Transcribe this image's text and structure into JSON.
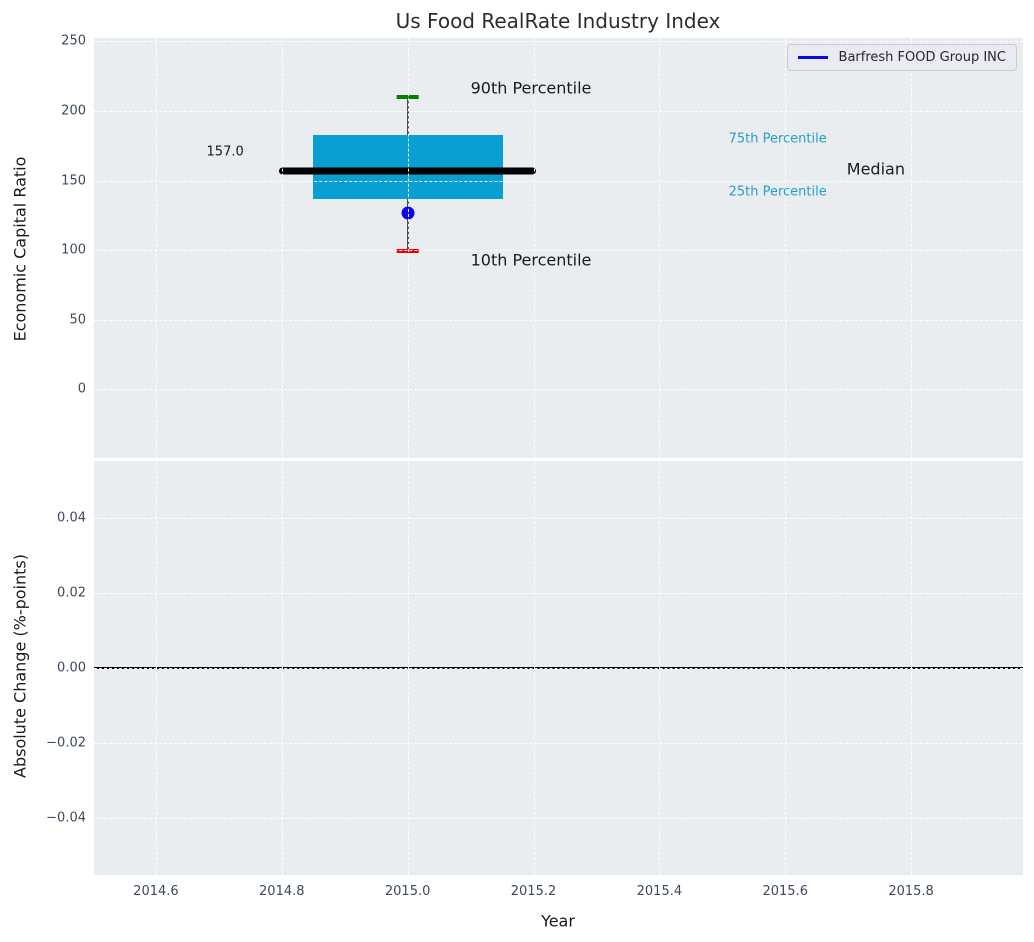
{
  "title": "Us Food RealRate Industry Index",
  "legend": {
    "label": "Barfresh FOOD Group INC",
    "position": "upper right"
  },
  "colors": {
    "axes_background": "#e9edf0",
    "grid": "#ffffff",
    "tick_label": "#3d4a5c",
    "title": "#2d2d30",
    "box_fill": "#0a9fd2",
    "median_line": "#000000",
    "whisker": "#4d4d4d",
    "p90_cap": "#008000",
    "p10_cap": "#ee0000",
    "company_marker": "#0808e8",
    "percentile_annotation": "#249fc8",
    "zero_line": "#000000"
  },
  "chart_data": [
    {
      "type": "boxplot",
      "title": "Us Food RealRate Industry Index",
      "ylabel": "Economic Capital Ratio",
      "grid": true,
      "legend_position": "upper right",
      "xlim": [
        2014.5016,
        2015.9778
      ],
      "ylim": [
        -49.6,
        252.5
      ],
      "xticks": [
        2014.6,
        2014.8,
        2015.0,
        2015.2,
        2015.4,
        2015.6,
        2015.8
      ],
      "xtick_labels_visible": false,
      "yticks": {
        "values": [
          0,
          50,
          100,
          150,
          200,
          250
        ],
        "labels": [
          "0",
          "50",
          "100",
          "150",
          "200",
          "250"
        ]
      },
      "box": {
        "x": 2015.0,
        "p10": 99,
        "p25": 137,
        "median": 157.0,
        "p75": 183,
        "p90": 210,
        "box_half_width": 0.151,
        "median_half_width": 0.204,
        "cap_half_width": 0.018
      },
      "series": [
        {
          "name": "Barfresh FOOD Group INC",
          "x": [
            2015.0
          ],
          "y": [
            126.5
          ],
          "marker": "circle"
        }
      ],
      "annotations": [
        {
          "id": "median-value-label",
          "text": "157.0",
          "x": 2014.71,
          "y": 170.5,
          "ha": "center",
          "size": "small",
          "color": "#1a1a1a"
        },
        {
          "id": "p90-annotation",
          "text": "90th Percentile",
          "x": 2015.1,
          "y": 216.5,
          "ha": "left",
          "size": "large",
          "color": "#1a1a1a"
        },
        {
          "id": "p10-annotation",
          "text": "10th Percentile",
          "x": 2015.1,
          "y": 92.5,
          "ha": "left",
          "size": "large",
          "color": "#1a1a1a"
        },
        {
          "id": "p75-annotation",
          "text": "75th Percentile",
          "x": 2015.51,
          "y": 180,
          "ha": "left",
          "size": "small",
          "color": "#249fc8"
        },
        {
          "id": "p25-annotation",
          "text": "25th Percentile",
          "x": 2015.51,
          "y": 141.5,
          "ha": "left",
          "size": "small",
          "color": "#249fc8"
        },
        {
          "id": "median-annotation",
          "text": "Median",
          "x": 2015.744,
          "y": 158,
          "ha": "center",
          "size": "large",
          "color": "#1a1a1a"
        }
      ]
    },
    {
      "type": "line",
      "ylabel": "Absolute Change (%-points)",
      "xlabel": "Year",
      "grid": true,
      "xlim": [
        2014.5016,
        2015.9778
      ],
      "ylim": [
        -0.0552,
        0.0552
      ],
      "xticks": [
        2014.6,
        2014.8,
        2015.0,
        2015.2,
        2015.4,
        2015.6,
        2015.8
      ],
      "xtick_labels": [
        "2014.6",
        "2014.8",
        "2015.0",
        "2015.2",
        "2015.4",
        "2015.6",
        "2015.8"
      ],
      "yticks": {
        "values": [
          -0.04,
          -0.02,
          0.0,
          0.02,
          0.04
        ],
        "labels": [
          "−0.04",
          "−0.02",
          "0.00",
          "0.02",
          "0.04"
        ]
      },
      "zero_line": 0.0,
      "series": []
    }
  ]
}
